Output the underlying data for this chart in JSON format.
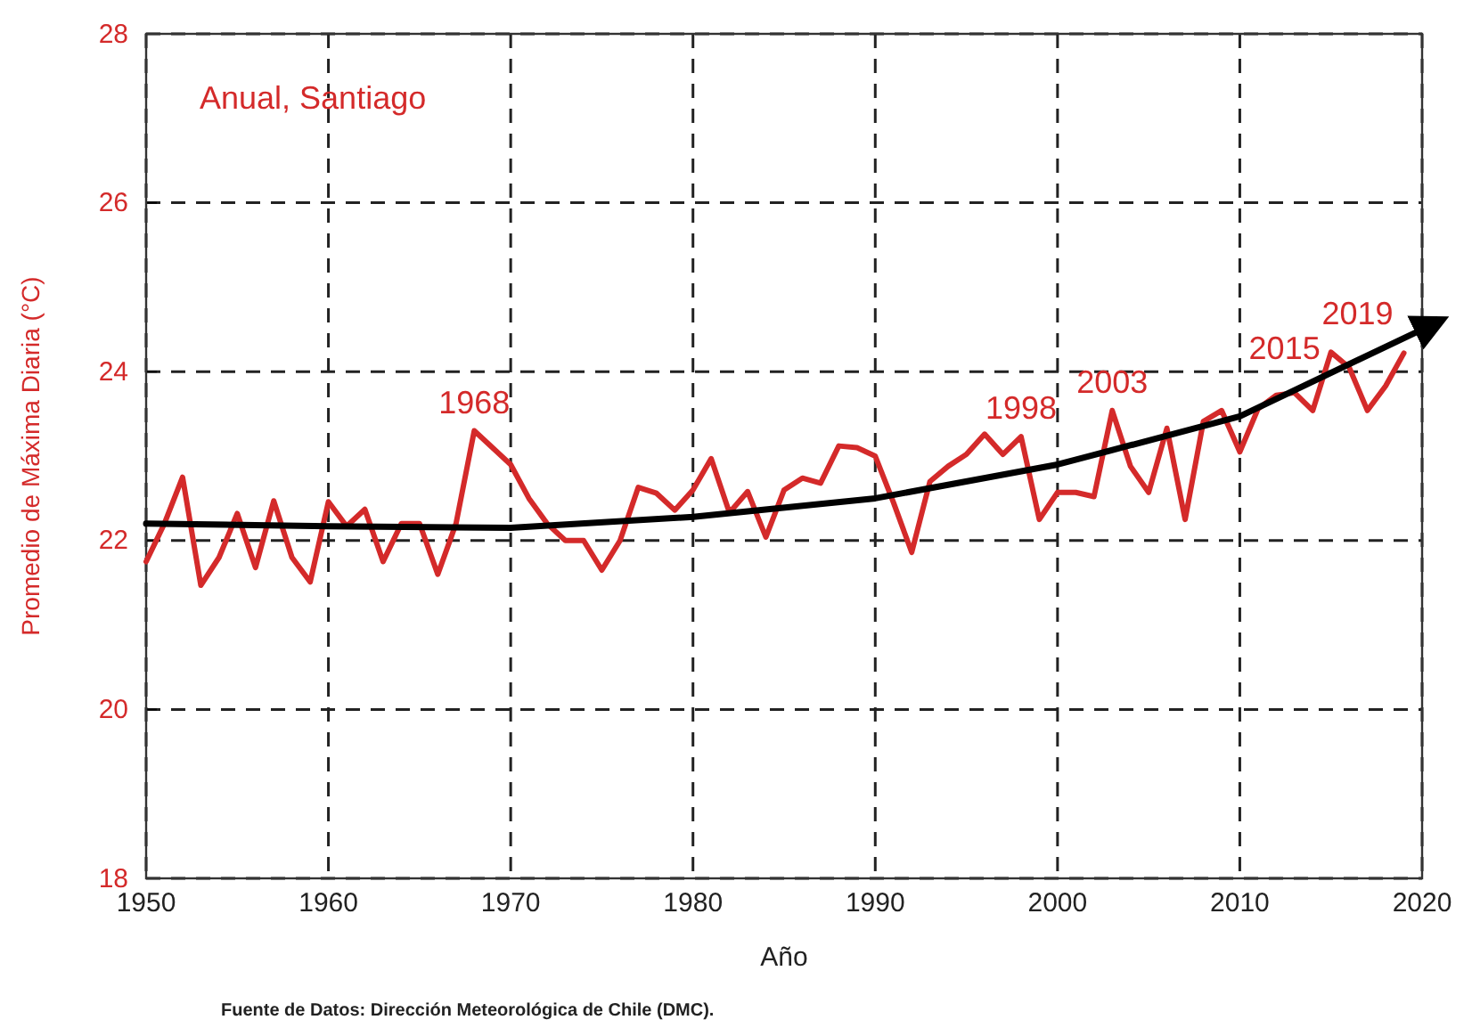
{
  "chart_data": {
    "type": "line",
    "title": "Anual, Santiago",
    "xlabel": "Año",
    "ylabel": "Promedio de Máxima Diaria  (°C)",
    "xlim": [
      1950,
      2020
    ],
    "xticks": [
      1950,
      1960,
      1970,
      1980,
      1990,
      2000,
      2010,
      2020
    ],
    "ylim": [
      18,
      28
    ],
    "yticks": [
      18,
      20,
      22,
      24,
      26,
      28
    ],
    "grid": true,
    "series": [
      {
        "type": "line",
        "color": "#d42a2a",
        "x": [
          1950,
          1951,
          1952,
          1953,
          1954,
          1955,
          1956,
          1957,
          1958,
          1959,
          1960,
          1961,
          1962,
          1963,
          1964,
          1965,
          1966,
          1967,
          1968,
          1969,
          1970,
          1971,
          1972,
          1973,
          1974,
          1975,
          1976,
          1977,
          1978,
          1979,
          1980,
          1981,
          1982,
          1983,
          1984,
          1985,
          1986,
          1987,
          1988,
          1989,
          1990,
          1991,
          1992,
          1993,
          1994,
          1995,
          1996,
          1997,
          1998,
          1999,
          2000,
          2001,
          2002,
          2003,
          2004,
          2005,
          2006,
          2007,
          2008,
          2009,
          2010,
          2011,
          2012,
          2013,
          2014,
          2015,
          2016,
          2017,
          2018,
          2019
        ],
        "values": [
          21.75,
          22.2,
          22.75,
          21.47,
          21.8,
          22.32,
          21.68,
          22.47,
          21.8,
          21.51,
          22.46,
          22.17,
          22.37,
          21.75,
          22.2,
          22.2,
          21.6,
          22.2,
          23.3,
          23.1,
          22.9,
          22.5,
          22.2,
          22.0,
          22.0,
          21.65,
          22.0,
          22.63,
          22.56,
          22.36,
          22.6,
          22.97,
          22.33,
          22.58,
          22.04,
          22.6,
          22.74,
          22.68,
          23.12,
          23.1,
          23.0,
          22.45,
          21.86,
          22.7,
          22.88,
          23.02,
          23.26,
          23.02,
          23.23,
          22.25,
          22.57,
          22.57,
          22.52,
          23.54,
          22.88,
          22.57,
          23.33,
          22.25,
          23.41,
          23.54,
          23.05,
          23.56,
          23.72,
          23.75,
          23.54,
          24.23,
          24.05,
          23.54,
          23.83,
          24.22
        ]
      },
      {
        "type": "line",
        "color": "#000000",
        "x": [
          1950,
          1960,
          1970,
          1980,
          1990,
          2000,
          2010,
          2020
        ],
        "values": [
          22.2,
          22.17,
          22.15,
          22.28,
          22.5,
          22.9,
          23.47,
          24.5
        ]
      }
    ],
    "annotations": [
      {
        "text": "1968",
        "x": 1968,
        "y": 23.3
      },
      {
        "text": "1998",
        "x": 1998,
        "y": 23.23
      },
      {
        "text": "2003",
        "x": 2003,
        "y": 23.54
      },
      {
        "text": "2015",
        "x": 2015,
        "y": 24.23
      },
      {
        "text": "2019",
        "x": 2019,
        "y": 24.22
      },
      "Fuente de Datos: Dirección Meteorológica de Chile (DMC)."
    ]
  }
}
